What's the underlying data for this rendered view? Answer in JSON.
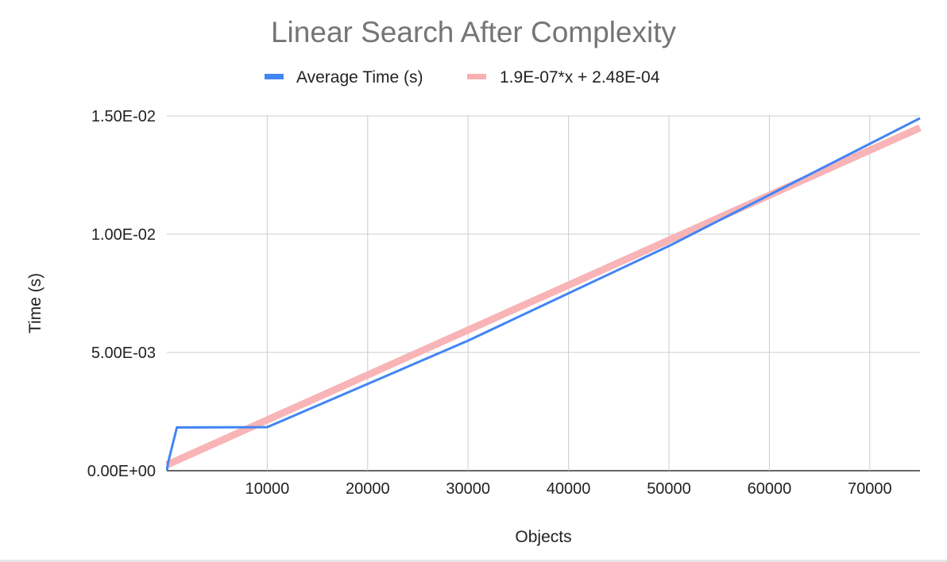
{
  "chart_data": {
    "type": "line",
    "title": "Linear Search After Complexity",
    "xlabel": "Objects",
    "ylabel": "Time (s)",
    "xlim": [
      0,
      75000
    ],
    "ylim": [
      0,
      0.015
    ],
    "x_ticks": [
      10000,
      20000,
      30000,
      40000,
      50000,
      60000,
      70000
    ],
    "x_tick_labels": [
      "10000",
      "20000",
      "30000",
      "40000",
      "50000",
      "60000",
      "70000"
    ],
    "y_ticks": [
      0,
      0.005,
      0.01,
      0.015
    ],
    "y_tick_labels": [
      "0.00E+00",
      "5.00E-03",
      "1.00E-02",
      "1.50E-02"
    ],
    "grid": true,
    "legend_position": "top",
    "series": [
      {
        "name": "Average Time (s)",
        "color": "#4285f4",
        "x": [
          10,
          100,
          1000,
          10000,
          30000,
          50000,
          75000
        ],
        "y": [
          2e-05,
          0.0003,
          0.00183,
          0.00184,
          0.0055,
          0.0095,
          0.0149
        ]
      },
      {
        "name": "1.9E-07*x + 2.48E-04",
        "color": "#f8b0b2",
        "type": "trendline",
        "slope": 1.9e-07,
        "intercept": 0.000248,
        "x": [
          0,
          75000
        ]
      }
    ]
  }
}
